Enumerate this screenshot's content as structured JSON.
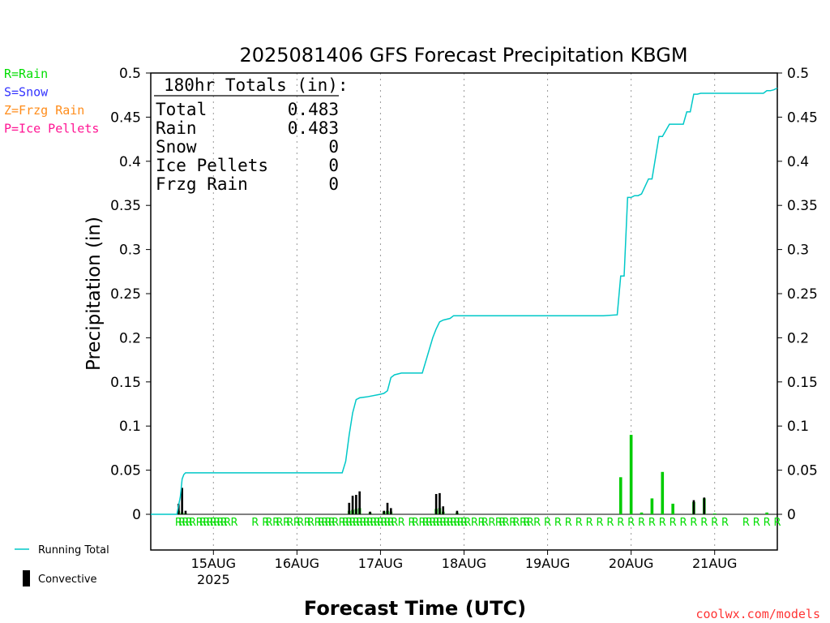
{
  "chart_data": {
    "type": "bar",
    "title": "2025081406 GFS Forecast Precipitation KBGM",
    "xlabel": "Forecast Time (UTC)",
    "ylabel": "Precipitation (in)",
    "ylim": [
      0,
      0.5
    ],
    "yticks": [
      "0",
      "0.05",
      "0.1",
      "0.15",
      "0.2",
      "0.25",
      "0.3",
      "0.35",
      "0.4",
      "0.45",
      "0.5"
    ],
    "x_unit": "forecast hour",
    "xlim": [
      0,
      180
    ],
    "xticks": [
      {
        "hour": 18,
        "label": "15AUG",
        "sublabel": "2025"
      },
      {
        "hour": 42,
        "label": "16AUG",
        "sublabel": ""
      },
      {
        "hour": 66,
        "label": "17AUG",
        "sublabel": ""
      },
      {
        "hour": 90,
        "label": "18AUG",
        "sublabel": ""
      },
      {
        "hour": 114,
        "label": "19AUG",
        "sublabel": ""
      },
      {
        "hour": 138,
        "label": "20AUG",
        "sublabel": ""
      },
      {
        "hour": 162,
        "label": "21AUG",
        "sublabel": ""
      }
    ],
    "grid": "vertical dotted at day boundaries",
    "legend_left": [
      {
        "text": "R=Rain",
        "color": "#00dd00"
      },
      {
        "text": "S=Snow",
        "color": "#3333ff"
      },
      {
        "text": "Z=Frzg Rain",
        "color": "#ff8c1a"
      },
      {
        "text": "P=Ice Pellets",
        "color": "#ff1493"
      }
    ],
    "legend_bottom": [
      {
        "text": "Running Total",
        "color": "#00c8c8",
        "symbol": "line"
      },
      {
        "text": "Convective",
        "color": "#000000",
        "symbol": "bar"
      }
    ],
    "totals": {
      "header": "180hr Totals (in):",
      "rows": [
        {
          "label": "Total",
          "value": "0.483"
        },
        {
          "label": "Rain",
          "value": "0.483"
        },
        {
          "label": "Snow",
          "value": "0"
        },
        {
          "label": "Ice Pellets",
          "value": "0"
        },
        {
          "label": "Frzg Rain",
          "value": "0"
        }
      ]
    },
    "series": [
      {
        "name": "Running Total",
        "color": "#00c8c8",
        "x": [
          0,
          7.5,
          8.5,
          9,
          9.5,
          10,
          55,
          56,
          57,
          58,
          59,
          60,
          62,
          66,
          67,
          68,
          69,
          70,
          72,
          78,
          81,
          82,
          83,
          84,
          86,
          87,
          100,
          130,
          134,
          135,
          136,
          137,
          138,
          139,
          140,
          141,
          143,
          144,
          146,
          147,
          149,
          150,
          151,
          153,
          154,
          155,
          156,
          157,
          158,
          159,
          160,
          161,
          162,
          176,
          177,
          178,
          179,
          180
        ],
        "values": [
          0,
          0,
          0.02,
          0.04,
          0.045,
          0.047,
          0.047,
          0.06,
          0.09,
          0.115,
          0.13,
          0.132,
          0.133,
          0.136,
          0.137,
          0.14,
          0.155,
          0.158,
          0.16,
          0.16,
          0.2,
          0.21,
          0.218,
          0.22,
          0.222,
          0.225,
          0.225,
          0.225,
          0.226,
          0.27,
          0.27,
          0.359,
          0.359,
          0.361,
          0.361,
          0.363,
          0.38,
          0.38,
          0.428,
          0.428,
          0.442,
          0.442,
          0.442,
          0.442,
          0.456,
          0.456,
          0.476,
          0.476,
          0.477,
          0.477,
          0.477,
          0.477,
          0.477,
          0.477,
          0.48,
          0.48,
          0.481,
          0.483
        ]
      },
      {
        "name": "Rain",
        "color": "#00cc00",
        "x": [
          8,
          9,
          10,
          57,
          58,
          59,
          60,
          63,
          67,
          68,
          69,
          82,
          83,
          84,
          88,
          135,
          138,
          141,
          144,
          147,
          150,
          156,
          159,
          162,
          177
        ],
        "values": [
          0.004,
          0.002,
          0.001,
          0.004,
          0.005,
          0.006,
          0.007,
          0.002,
          0.003,
          0.004,
          0.003,
          0.006,
          0.007,
          0.003,
          0.002,
          0.042,
          0.09,
          0.002,
          0.018,
          0.048,
          0.012,
          0.014,
          0.018,
          0.001,
          0.002
        ]
      },
      {
        "name": "Convective",
        "color": "#000000",
        "x": [
          8,
          9,
          10,
          57,
          58,
          59,
          60,
          63,
          67,
          68,
          69,
          82,
          83,
          84,
          88,
          156,
          159
        ],
        "values": [
          0.012,
          0.03,
          0.004,
          0.013,
          0.021,
          0.022,
          0.026,
          0.003,
          0.004,
          0.013,
          0.007,
          0.023,
          0.024,
          0.009,
          0.004,
          0.016,
          0.019
        ]
      }
    ],
    "ptype_markers": {
      "label": "R",
      "color": "#00dd00",
      "hours": [
        8,
        9,
        10,
        11,
        12,
        14,
        15,
        16,
        17,
        18,
        19,
        20,
        21,
        22,
        24,
        30,
        33,
        34,
        36,
        37,
        39,
        40,
        42,
        43,
        45,
        46,
        48,
        49,
        50,
        51,
        52,
        53,
        55,
        56,
        57,
        58,
        59,
        60,
        61,
        62,
        63,
        64,
        65,
        66,
        67,
        68,
        69,
        70,
        72,
        75,
        76,
        78,
        79,
        80,
        81,
        82,
        83,
        84,
        85,
        86,
        87,
        88,
        89,
        90,
        91,
        93,
        95,
        96,
        98,
        100,
        101,
        102,
        104,
        105,
        107,
        108,
        109,
        111,
        114,
        117,
        120,
        123,
        126,
        129,
        132,
        135,
        138,
        141,
        144,
        147,
        150,
        153,
        156,
        159,
        162,
        165,
        171,
        174,
        177,
        180
      ]
    },
    "credit": "coolwx.com/models"
  }
}
